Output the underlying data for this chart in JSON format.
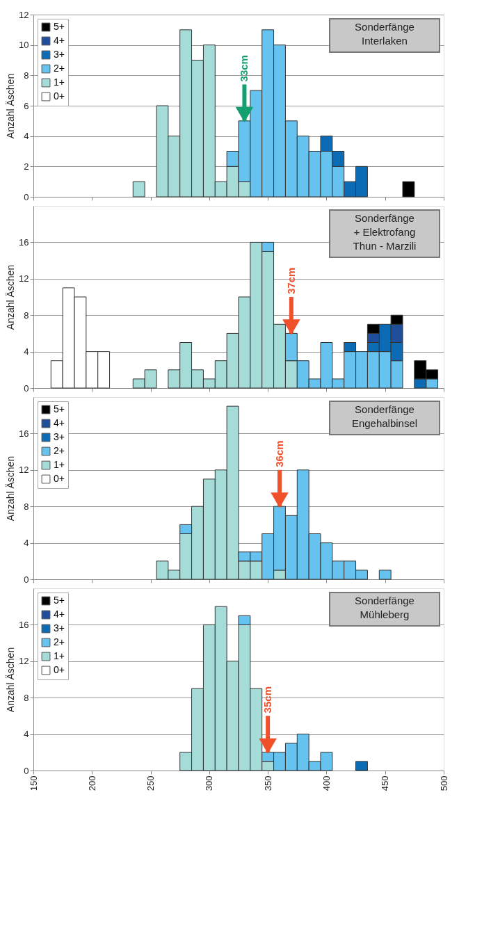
{
  "chart_data": [
    {
      "type": "bar",
      "stacked": true,
      "title": "Sonderfänge\nInterlaken",
      "ylabel": "Anzahl Äschen",
      "xlim": [
        150,
        500
      ],
      "xticks": [
        150,
        200,
        250,
        300,
        350,
        400,
        450,
        500
      ],
      "ylim": [
        0,
        12
      ],
      "yticks": [
        0,
        2,
        4,
        6,
        8,
        10,
        12
      ],
      "grid": "y",
      "legend": "top left",
      "tick_labels": "y",
      "x": [
        240,
        250,
        260,
        270,
        280,
        290,
        300,
        310,
        320,
        330,
        340,
        350,
        360,
        370,
        380,
        390,
        400,
        410,
        420,
        430,
        440,
        450,
        460,
        470
      ],
      "series": [
        {
          "name": "0+",
          "color": "#ffffff",
          "values": [
            null,
            null,
            null,
            null,
            null,
            null,
            null,
            null,
            null,
            null,
            null,
            null,
            null,
            null,
            null,
            null,
            null,
            null,
            null,
            null,
            null,
            null,
            null,
            null
          ]
        },
        {
          "name": "1+",
          "color": "#a6dcd8",
          "values": [
            1,
            null,
            6,
            4,
            11,
            9,
            10,
            1,
            2,
            1,
            null,
            null,
            null,
            null,
            null,
            null,
            null,
            null,
            null,
            null,
            null,
            null,
            null,
            null
          ]
        },
        {
          "name": "2+",
          "color": "#66c2ee",
          "values": [
            null,
            null,
            null,
            null,
            null,
            null,
            null,
            null,
            1,
            4,
            7,
            11,
            10,
            5,
            4,
            3,
            3,
            2,
            null,
            null,
            null,
            null,
            null,
            null
          ]
        },
        {
          "name": "3+",
          "color": "#0b6cb5",
          "values": [
            null,
            null,
            null,
            null,
            null,
            null,
            null,
            null,
            null,
            null,
            null,
            null,
            null,
            null,
            null,
            null,
            1,
            1,
            1,
            2,
            null,
            null,
            null,
            null
          ]
        },
        {
          "name": "4+",
          "color": "#1f4e9c",
          "values": [
            null,
            null,
            null,
            null,
            null,
            null,
            null,
            null,
            null,
            null,
            null,
            null,
            null,
            null,
            null,
            null,
            null,
            null,
            null,
            null,
            null,
            null,
            null,
            null
          ]
        },
        {
          "name": "5+",
          "color": "#000000",
          "values": [
            null,
            null,
            null,
            null,
            null,
            null,
            null,
            null,
            null,
            null,
            null,
            null,
            null,
            null,
            null,
            null,
            null,
            null,
            null,
            null,
            null,
            null,
            null,
            1
          ]
        }
      ],
      "annotations": [
        {
          "text": "33cm",
          "x": 330,
          "y": 5
        }
      ]
    },
    {
      "type": "bar",
      "stacked": true,
      "title": "Sonderfänge\n+ Elektrofang\nThun - Marzili",
      "ylabel": "Anzahl Äschen",
      "xlim": [
        150,
        500
      ],
      "xticks": [
        150,
        200,
        250,
        300,
        350,
        400,
        450,
        500
      ],
      "ylim": [
        0,
        20
      ],
      "yticks": [
        0,
        4,
        8,
        12,
        16
      ],
      "grid": "y",
      "tick_labels": "y",
      "x": [
        170,
        180,
        190,
        200,
        210,
        220,
        230,
        240,
        250,
        260,
        270,
        280,
        290,
        300,
        310,
        320,
        330,
        340,
        350,
        360,
        370,
        380,
        390,
        400,
        410,
        420,
        430,
        440,
        450,
        460,
        470,
        480,
        490
      ],
      "series": [
        {
          "color": "#ffffff",
          "values": [
            3,
            11,
            10,
            4,
            4,
            null,
            null,
            null,
            null,
            null,
            null,
            null,
            null,
            null,
            null,
            null,
            null,
            null,
            null,
            null,
            null,
            null,
            null,
            null,
            null,
            null,
            null,
            null,
            null,
            null,
            null,
            null,
            null
          ]
        },
        {
          "color": "#a6dcd8",
          "values": [
            null,
            null,
            null,
            null,
            null,
            null,
            null,
            1,
            2,
            null,
            2,
            5,
            2,
            1,
            3,
            6,
            10,
            16,
            15,
            7,
            3,
            null,
            null,
            null,
            null,
            null,
            null,
            null,
            null,
            null,
            null,
            null,
            null
          ]
        },
        {
          "color": "#66c2ee",
          "values": [
            null,
            null,
            null,
            null,
            null,
            null,
            null,
            null,
            null,
            null,
            null,
            null,
            null,
            null,
            null,
            null,
            null,
            null,
            1,
            null,
            3,
            3,
            1,
            5,
            1,
            4,
            4,
            4,
            4,
            3,
            null,
            null,
            1
          ]
        },
        {
          "color": "#0b6cb5",
          "values": [
            null,
            null,
            null,
            null,
            null,
            null,
            null,
            null,
            null,
            null,
            null,
            null,
            null,
            null,
            null,
            null,
            null,
            null,
            null,
            null,
            null,
            null,
            null,
            null,
            null,
            1,
            null,
            1,
            3,
            2,
            null,
            1,
            null
          ]
        },
        {
          "color": "#1f4e9c",
          "values": [
            null,
            null,
            null,
            null,
            null,
            null,
            null,
            null,
            null,
            null,
            null,
            null,
            null,
            null,
            null,
            null,
            null,
            null,
            null,
            null,
            null,
            null,
            null,
            null,
            null,
            null,
            null,
            1,
            null,
            2,
            null,
            null,
            null
          ]
        },
        {
          "color": "#000000",
          "values": [
            null,
            null,
            null,
            null,
            null,
            null,
            null,
            null,
            null,
            null,
            null,
            null,
            null,
            null,
            null,
            null,
            null,
            null,
            null,
            null,
            null,
            null,
            null,
            null,
            null,
            null,
            null,
            1,
            null,
            1,
            null,
            2,
            1
          ]
        }
      ],
      "annotations": [
        {
          "text": "37cm",
          "x": 370,
          "y": 6
        }
      ]
    },
    {
      "type": "bar",
      "stacked": true,
      "title": "Sonderfänge\nEngehalbinsel",
      "ylabel": "Anzahl Äschen",
      "xlim": [
        150,
        500
      ],
      "xticks": [
        150,
        200,
        250,
        300,
        350,
        400,
        450,
        500
      ],
      "ylim": [
        0,
        20
      ],
      "yticks": [
        0,
        4,
        8,
        12,
        16
      ],
      "grid": "y",
      "legend": "top left",
      "tick_labels": "y",
      "x": [
        260,
        270,
        280,
        290,
        300,
        310,
        320,
        330,
        340,
        350,
        360,
        370,
        380,
        390,
        400,
        410,
        420,
        430,
        440,
        450
      ],
      "series": [
        {
          "name": "0+",
          "color": "#ffffff",
          "values": [
            null,
            null,
            null,
            null,
            null,
            null,
            null,
            null,
            null,
            null,
            null,
            null,
            null,
            null,
            null,
            null,
            null,
            null,
            null,
            null
          ]
        },
        {
          "name": "1+",
          "color": "#a6dcd8",
          "values": [
            2,
            1,
            5,
            8,
            11,
            12,
            19,
            2,
            2,
            null,
            1,
            null,
            null,
            null,
            null,
            null,
            null,
            null,
            null,
            null
          ]
        },
        {
          "name": "2+",
          "color": "#66c2ee",
          "values": [
            null,
            null,
            1,
            null,
            null,
            null,
            null,
            1,
            1,
            5,
            7,
            7,
            12,
            5,
            4,
            2,
            2,
            1,
            null,
            1
          ]
        },
        {
          "name": "3+",
          "color": "#0b6cb5",
          "values": [
            null,
            null,
            null,
            null,
            null,
            null,
            null,
            null,
            null,
            null,
            null,
            null,
            null,
            null,
            null,
            null,
            null,
            null,
            null,
            null
          ]
        },
        {
          "name": "4+",
          "color": "#1f4e9c",
          "values": [
            null,
            null,
            null,
            null,
            null,
            null,
            null,
            null,
            null,
            null,
            null,
            null,
            null,
            null,
            null,
            null,
            null,
            null,
            null,
            null
          ]
        },
        {
          "name": "5+",
          "color": "#000000",
          "values": [
            null,
            null,
            null,
            null,
            null,
            null,
            null,
            null,
            null,
            null,
            null,
            null,
            null,
            null,
            null,
            null,
            null,
            null,
            null,
            null
          ]
        }
      ],
      "annotations": [
        {
          "text": "36cm",
          "x": 360,
          "y": 8
        }
      ]
    },
    {
      "type": "bar",
      "stacked": true,
      "title": "Sonderfänge\nMühleberg",
      "ylabel": "Anzahl Äschen",
      "xlim": [
        150,
        500
      ],
      "xticks": [
        150,
        200,
        250,
        300,
        350,
        400,
        450,
        500
      ],
      "ylim": [
        0,
        20
      ],
      "yticks": [
        0,
        4,
        8,
        12,
        16
      ],
      "grid": "y",
      "legend": "top left",
      "x": [
        280,
        290,
        300,
        310,
        320,
        330,
        340,
        350,
        360,
        370,
        380,
        390,
        400,
        410,
        420,
        430
      ],
      "series": [
        {
          "name": "0+",
          "color": "#ffffff",
          "values": [
            null,
            null,
            null,
            null,
            null,
            null,
            null,
            null,
            null,
            null,
            null,
            null,
            null,
            null,
            null,
            null
          ]
        },
        {
          "name": "1+",
          "color": "#a6dcd8",
          "values": [
            2,
            9,
            16,
            18,
            12,
            16,
            9,
            1,
            null,
            null,
            null,
            null,
            null,
            null,
            null,
            null
          ]
        },
        {
          "name": "2+",
          "color": "#66c2ee",
          "values": [
            null,
            null,
            null,
            null,
            null,
            1,
            null,
            1,
            2,
            3,
            4,
            1,
            2,
            null,
            null,
            null
          ]
        },
        {
          "name": "3+",
          "color": "#0b6cb5",
          "values": [
            null,
            null,
            null,
            null,
            null,
            null,
            null,
            null,
            null,
            null,
            null,
            null,
            null,
            null,
            null,
            1
          ]
        },
        {
          "name": "4+",
          "color": "#1f4e9c",
          "values": [
            null,
            null,
            null,
            null,
            null,
            null,
            null,
            null,
            null,
            null,
            null,
            null,
            null,
            null,
            null,
            null
          ]
        },
        {
          "name": "5+",
          "color": "#000000",
          "values": [
            null,
            null,
            null,
            null,
            null,
            null,
            null,
            null,
            null,
            null,
            null,
            null,
            null,
            null,
            null,
            null
          ]
        }
      ],
      "annotations": [
        {
          "text": "35cm",
          "x": 350,
          "y": 2
        }
      ]
    }
  ]
}
